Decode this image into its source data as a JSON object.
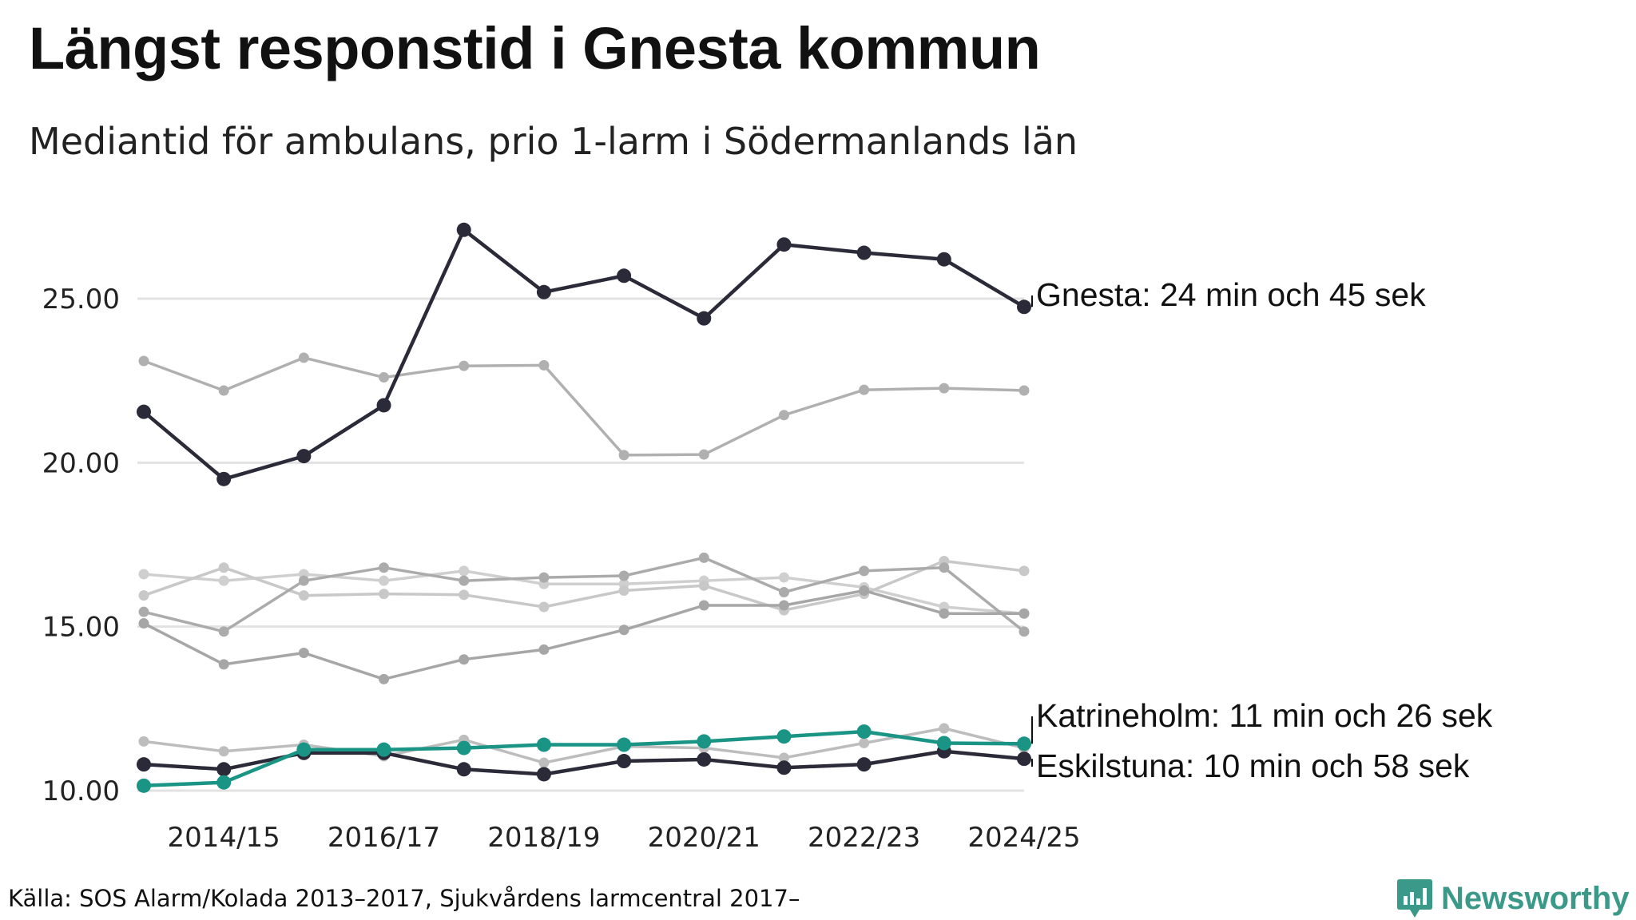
{
  "title": "Längst responstid i Gnesta kommun",
  "subtitle": "Mediantid för ambulans, prio 1-larm i Södermanlands län",
  "source": "Källa: SOS Alarm/Kolada 2013–2017, Sjukvårdens larmcentral 2017–",
  "logo": {
    "text": "Newsworthy",
    "color": "#3a9988",
    "icon": "bar-chart-badge-icon"
  },
  "chart_data": {
    "type": "line",
    "title": "Längst responstid i Gnesta kommun",
    "subtitle": "Mediantid för ambulans, prio 1-larm i Södermanlands län",
    "x": [
      "2013/14",
      "2014/15",
      "2015/16",
      "2016/17",
      "2017/18",
      "2018/19",
      "2019/20",
      "2020/21",
      "2021/22",
      "2022/23",
      "2023/24",
      "2024/25"
    ],
    "x_tick_labels": [
      "2014/15",
      "2016/17",
      "2018/19",
      "2020/21",
      "2022/23",
      "2024/25"
    ],
    "y_tick_labels": [
      "10.00",
      "15.00",
      "20.00",
      "25.00"
    ],
    "ylim": [
      10,
      27.5
    ],
    "grid": true,
    "series": [
      {
        "name": "",
        "color": "#b0b0b0",
        "highlight": false,
        "values": [
          23.1,
          22.2,
          23.2,
          22.6,
          22.95,
          22.97,
          20.23,
          20.25,
          21.45,
          22.22,
          22.27,
          22.2
        ]
      },
      {
        "name": "",
        "color": "#cfcfcf",
        "highlight": false,
        "values": [
          16.6,
          16.4,
          16.6,
          16.4,
          16.7,
          16.3,
          16.3,
          16.4,
          16.5,
          16.2,
          15.6,
          15.4
        ]
      },
      {
        "name": "",
        "color": "#c8c8c8",
        "highlight": false,
        "values": [
          15.95,
          16.8,
          15.95,
          16.0,
          15.97,
          15.6,
          16.1,
          16.25,
          15.5,
          16.0,
          17.0,
          16.7
        ]
      },
      {
        "name": "",
        "color": "#ababab",
        "highlight": false,
        "values": [
          15.45,
          14.85,
          16.4,
          16.8,
          16.4,
          16.5,
          16.55,
          17.1,
          16.05,
          16.7,
          16.8,
          14.85
        ]
      },
      {
        "name": "",
        "color": "#a6a6a6",
        "highlight": false,
        "values": [
          15.1,
          13.85,
          14.2,
          13.4,
          14.0,
          14.3,
          14.9,
          15.65,
          15.65,
          16.1,
          15.4,
          15.4
        ]
      },
      {
        "name": "",
        "color": "#bdbdbd",
        "highlight": false,
        "values": [
          11.5,
          11.2,
          11.4,
          11.05,
          11.55,
          10.85,
          11.35,
          11.3,
          11.0,
          11.45,
          11.9,
          11.3
        ]
      },
      {
        "name": "Gnesta",
        "color": "#2b2a38",
        "highlight": true,
        "values": [
          21.55,
          19.5,
          20.2,
          21.75,
          27.1,
          25.2,
          25.7,
          24.4,
          26.65,
          26.4,
          26.2,
          24.75
        ],
        "label": "Gnesta: 24 min och 45 sek"
      },
      {
        "name": "Eskilstuna",
        "color": "#2b2a38",
        "highlight": true,
        "values": [
          10.8,
          10.65,
          11.15,
          11.15,
          10.65,
          10.5,
          10.9,
          10.95,
          10.7,
          10.8,
          11.2,
          10.97
        ],
        "label": "Eskilstuna: 10 min och 58 sek"
      },
      {
        "name": "Katrineholm",
        "color": "#1a9585",
        "highlight": true,
        "values": [
          10.15,
          10.25,
          11.25,
          11.25,
          11.3,
          11.4,
          11.4,
          11.5,
          11.65,
          11.8,
          11.45,
          11.43
        ],
        "label": "Katrineholm: 11 min och 26 sek"
      }
    ]
  }
}
